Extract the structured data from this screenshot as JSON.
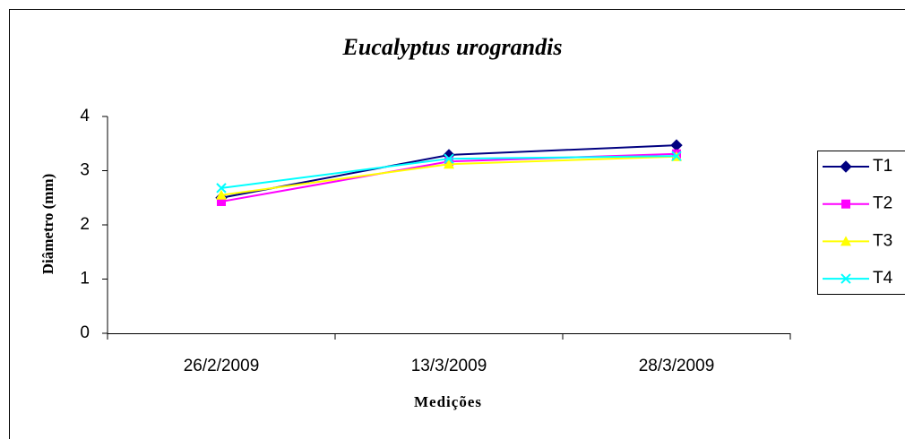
{
  "chart_data": {
    "type": "line",
    "title": "Eucalyptus urograndis",
    "x_label": "Medições",
    "y_label": "Diâmetro (mm)",
    "categories": [
      "26/2/2009",
      "13/3/2009",
      "28/3/2009"
    ],
    "series": [
      {
        "name": "T1",
        "color": "#000080",
        "marker": "diamond",
        "values": [
          2.5,
          3.29,
          3.47
        ]
      },
      {
        "name": "T2",
        "color": "#ff00ff",
        "marker": "square",
        "values": [
          2.43,
          3.17,
          3.31
        ]
      },
      {
        "name": "T3",
        "color": "#ffff00",
        "marker": "triangle",
        "values": [
          2.55,
          3.12,
          3.26
        ]
      },
      {
        "name": "T4",
        "color": "#00ffff",
        "marker": "x",
        "values": [
          2.68,
          3.22,
          3.27
        ]
      }
    ],
    "ylim": [
      0,
      4
    ],
    "yticks": [
      0,
      1,
      2,
      3,
      4
    ],
    "legend": "right"
  }
}
